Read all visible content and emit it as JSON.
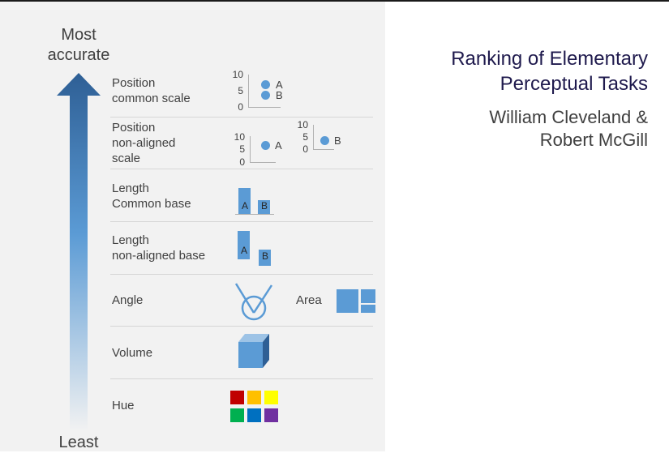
{
  "slide": {
    "title": "Ranking of Elementary\nPerceptual Tasks",
    "authors": "William Cleveland &\nRobert McGill"
  },
  "axis": {
    "top_label": "Most\naccurate",
    "bottom_label": "Least"
  },
  "tasks": [
    {
      "label": "Position\ncommon scale"
    },
    {
      "label": "Position\nnon-aligned\nscale"
    },
    {
      "label": "Length\nCommon base"
    },
    {
      "label": "Length\nnon-aligned base"
    },
    {
      "label": "Angle"
    },
    {
      "label": "Volume"
    },
    {
      "label": "Hue"
    }
  ],
  "extra_task": {
    "label": "Area"
  },
  "examples": {
    "common_scale_ticks": [
      "10",
      "5",
      "0"
    ],
    "nonaligned_ticks_1": [
      "10",
      "5",
      "0"
    ],
    "nonaligned_ticks_2": [
      "10",
      "5",
      "0"
    ],
    "point_a": "A",
    "point_b": "B",
    "bar_a": "A",
    "bar_b": "B"
  },
  "colors": {
    "accent": "#5b9bd5",
    "arrow_dark": "#2e5f95",
    "hue_swatches": [
      "#c00000",
      "#ffc000",
      "#ffff00",
      "#00b050",
      "#0070c0",
      "#7030a0"
    ]
  }
}
